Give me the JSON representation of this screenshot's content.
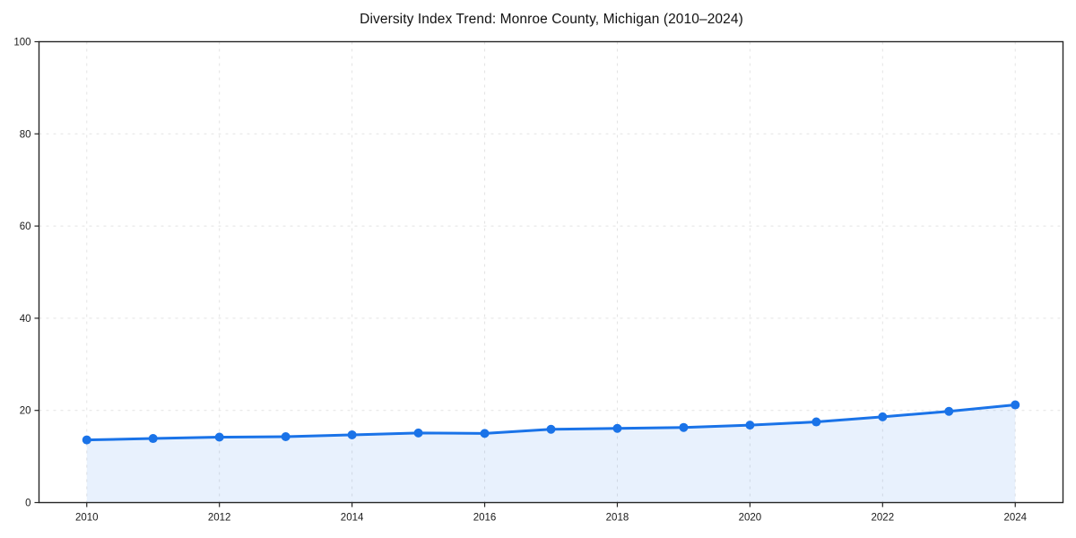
{
  "chart_data": {
    "type": "line",
    "title": "Diversity Index Trend: Monroe County, Michigan (2010–2024)",
    "xlabel": "",
    "ylabel": "",
    "x": [
      2010,
      2011,
      2012,
      2013,
      2014,
      2015,
      2016,
      2017,
      2018,
      2019,
      2020,
      2021,
      2022,
      2023,
      2024
    ],
    "series": [
      {
        "name": "Diversity Index",
        "values": [
          13.6,
          13.9,
          14.2,
          14.3,
          14.7,
          15.1,
          15.0,
          15.9,
          16.1,
          16.3,
          16.8,
          17.5,
          18.6,
          19.8,
          21.2
        ]
      }
    ],
    "xlim": [
      2009.28,
      2024.72
    ],
    "ylim": [
      0,
      100
    ],
    "xticks": [
      2010,
      2012,
      2014,
      2016,
      2018,
      2020,
      2022,
      2024
    ],
    "yticks": [
      0,
      20,
      40,
      60,
      80,
      100
    ],
    "grid": true,
    "grid_style": "dashed",
    "legend_position": "none",
    "area_fill": true,
    "marker": "circle",
    "colors": {
      "line": "#1a73e8",
      "marker": "#1a73e8",
      "area_fill": "rgba(26, 115, 232, 0.10)",
      "grid": "#e4e4e4",
      "axis": "#262626",
      "tick_label": "#1a1a1a",
      "title": "#111111",
      "background": "#ffffff"
    }
  }
}
